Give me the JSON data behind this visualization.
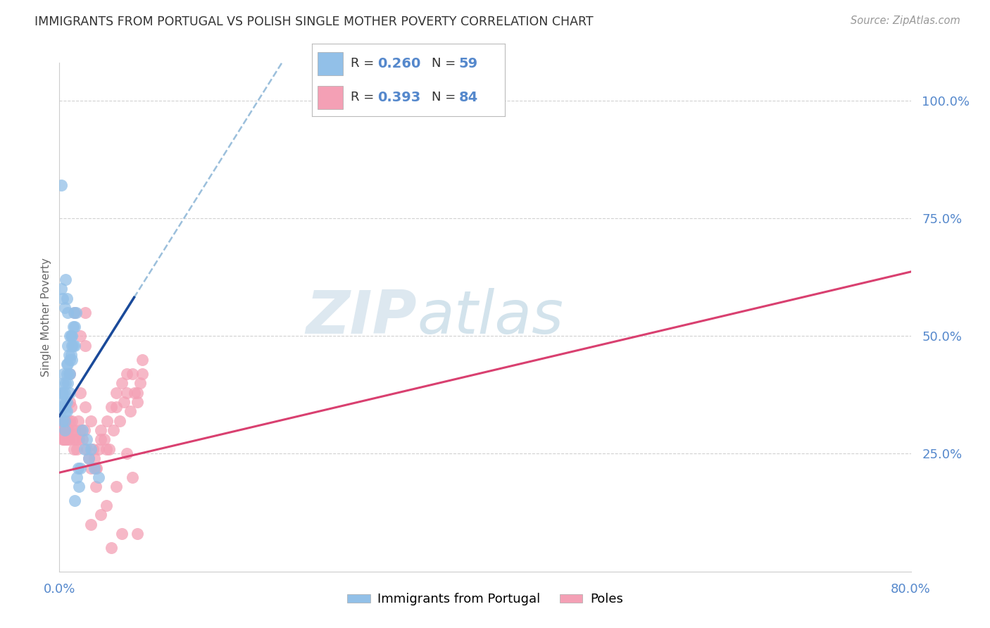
{
  "title": "IMMIGRANTS FROM PORTUGAL VS POLISH SINGLE MOTHER POVERTY CORRELATION CHART",
  "source": "Source: ZipAtlas.com",
  "ylabel": "Single Mother Poverty",
  "blue_color": "#92c0e8",
  "pink_color": "#f4a0b5",
  "blue_line_color": "#1a4a9a",
  "pink_line_color": "#d94070",
  "dashed_line_color": "#90b8d8",
  "bg_color": "#ffffff",
  "grid_color": "#cccccc",
  "title_color": "#333333",
  "axis_label_color": "#5588cc",
  "blue_r": "0.260",
  "blue_n": "59",
  "pink_r": "0.393",
  "pink_n": "84",
  "blue_scatter_x": [
    0.001,
    0.002,
    0.002,
    0.003,
    0.003,
    0.003,
    0.004,
    0.004,
    0.004,
    0.005,
    0.005,
    0.005,
    0.005,
    0.006,
    0.006,
    0.006,
    0.007,
    0.007,
    0.007,
    0.007,
    0.008,
    0.008,
    0.008,
    0.009,
    0.009,
    0.01,
    0.01,
    0.01,
    0.011,
    0.011,
    0.012,
    0.012,
    0.013,
    0.013,
    0.014,
    0.015,
    0.015,
    0.016,
    0.017,
    0.018,
    0.019,
    0.02,
    0.022,
    0.024,
    0.026,
    0.028,
    0.03,
    0.034,
    0.038,
    0.002,
    0.003,
    0.005,
    0.006,
    0.007,
    0.008,
    0.01,
    0.012,
    0.015,
    0.002
  ],
  "blue_scatter_y": [
    0.34,
    0.35,
    0.38,
    0.32,
    0.36,
    0.38,
    0.35,
    0.4,
    0.42,
    0.35,
    0.38,
    0.3,
    0.32,
    0.4,
    0.36,
    0.34,
    0.44,
    0.42,
    0.36,
    0.34,
    0.48,
    0.44,
    0.4,
    0.46,
    0.42,
    0.45,
    0.42,
    0.38,
    0.5,
    0.46,
    0.5,
    0.48,
    0.52,
    0.48,
    0.55,
    0.52,
    0.48,
    0.55,
    0.2,
    0.22,
    0.18,
    0.22,
    0.3,
    0.26,
    0.28,
    0.24,
    0.26,
    0.22,
    0.2,
    0.6,
    0.58,
    0.56,
    0.62,
    0.58,
    0.55,
    0.5,
    0.45,
    0.15,
    0.82
  ],
  "pink_scatter_x": [
    0.001,
    0.002,
    0.002,
    0.003,
    0.003,
    0.003,
    0.004,
    0.004,
    0.004,
    0.005,
    0.005,
    0.005,
    0.006,
    0.006,
    0.007,
    0.007,
    0.008,
    0.008,
    0.009,
    0.009,
    0.01,
    0.01,
    0.011,
    0.012,
    0.012,
    0.013,
    0.014,
    0.015,
    0.016,
    0.017,
    0.018,
    0.019,
    0.02,
    0.022,
    0.024,
    0.026,
    0.028,
    0.03,
    0.032,
    0.034,
    0.036,
    0.038,
    0.04,
    0.043,
    0.046,
    0.048,
    0.052,
    0.055,
    0.058,
    0.062,
    0.065,
    0.068,
    0.072,
    0.075,
    0.078,
    0.08,
    0.02,
    0.025,
    0.03,
    0.035,
    0.04,
    0.045,
    0.05,
    0.055,
    0.06,
    0.065,
    0.07,
    0.075,
    0.08,
    0.025,
    0.035,
    0.045,
    0.055,
    0.065,
    0.075,
    0.01,
    0.015,
    0.02,
    0.025,
    0.03,
    0.04,
    0.05,
    0.06,
    0.07
  ],
  "pink_scatter_y": [
    0.32,
    0.3,
    0.35,
    0.28,
    0.3,
    0.32,
    0.3,
    0.28,
    0.32,
    0.3,
    0.28,
    0.32,
    0.3,
    0.28,
    0.32,
    0.3,
    0.3,
    0.28,
    0.3,
    0.28,
    0.36,
    0.32,
    0.35,
    0.32,
    0.3,
    0.28,
    0.26,
    0.3,
    0.28,
    0.26,
    0.32,
    0.28,
    0.3,
    0.28,
    0.3,
    0.26,
    0.24,
    0.22,
    0.26,
    0.24,
    0.22,
    0.26,
    0.3,
    0.28,
    0.32,
    0.26,
    0.3,
    0.35,
    0.32,
    0.36,
    0.38,
    0.34,
    0.38,
    0.36,
    0.4,
    0.42,
    0.38,
    0.35,
    0.32,
    0.22,
    0.28,
    0.26,
    0.35,
    0.38,
    0.4,
    0.42,
    0.42,
    0.38,
    0.45,
    0.55,
    0.18,
    0.14,
    0.18,
    0.25,
    0.08,
    0.42,
    0.55,
    0.5,
    0.48,
    0.1,
    0.12,
    0.05,
    0.08,
    0.2
  ]
}
